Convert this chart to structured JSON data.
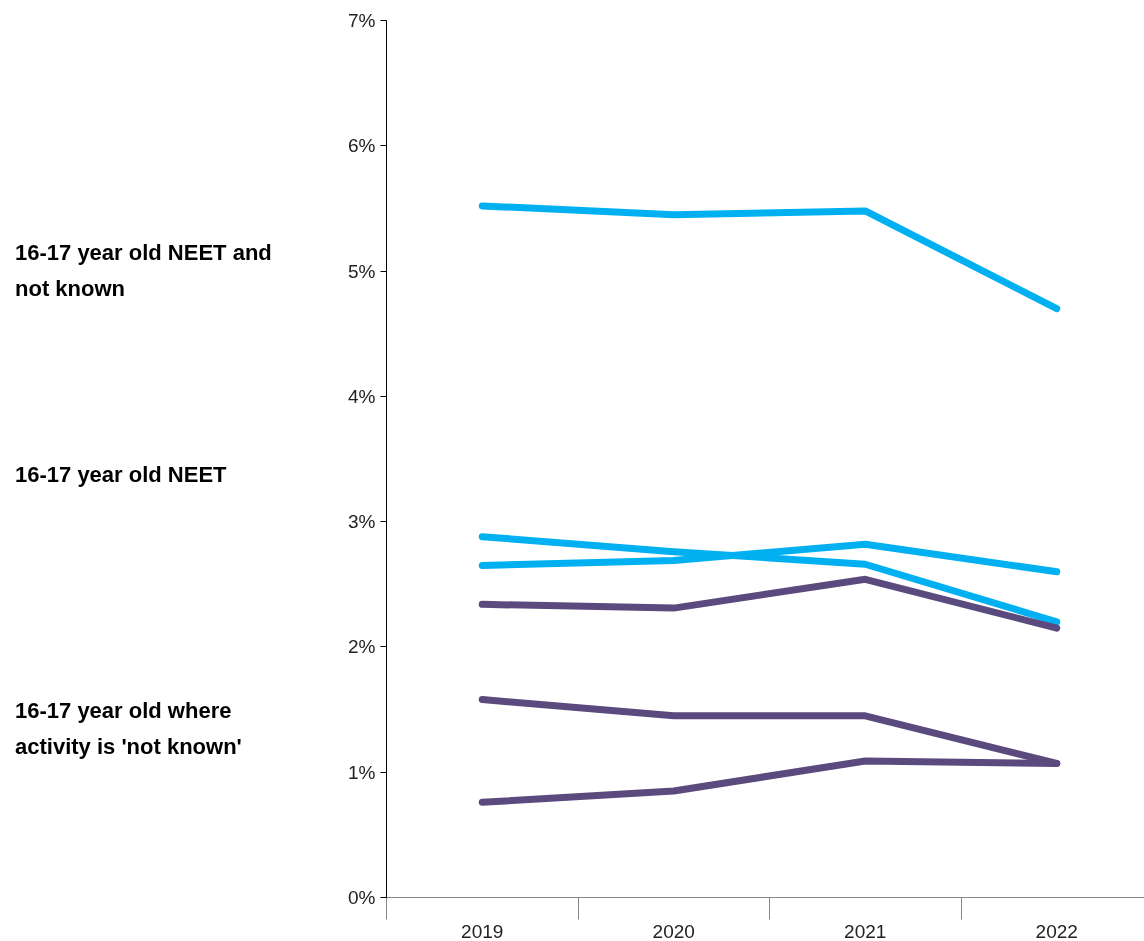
{
  "chart_data": {
    "type": "line",
    "categories": [
      "2019",
      "2020",
      "2021",
      "2022"
    ],
    "series": [
      {
        "color": "#00b0f0",
        "values": [
          5.52,
          5.45,
          5.48,
          4.7
        ]
      },
      {
        "color": "#00b0f0",
        "values": [
          2.88,
          2.76,
          2.66,
          2.2
        ]
      },
      {
        "color": "#00b0f0",
        "values": [
          2.65,
          2.69,
          2.82,
          2.6
        ]
      },
      {
        "color": "#5b4a7e",
        "values": [
          2.34,
          2.31,
          2.54,
          2.15
        ]
      },
      {
        "color": "#5b4a7e",
        "values": [
          1.58,
          1.45,
          1.45,
          1.07
        ]
      },
      {
        "color": "#5b4a7e",
        "values": [
          0.76,
          0.85,
          1.09,
          1.07
        ]
      }
    ],
    "ylim": [
      0,
      7
    ],
    "yticks": [
      {
        "value": 0,
        "label": "0%"
      },
      {
        "value": 1,
        "label": "1%"
      },
      {
        "value": 2,
        "label": "2%"
      },
      {
        "value": 3,
        "label": "3%"
      },
      {
        "value": 4,
        "label": "4%"
      },
      {
        "value": 5,
        "label": "5%"
      },
      {
        "value": 6,
        "label": "6%"
      },
      {
        "value": 7,
        "label": "7%"
      }
    ],
    "grid": false,
    "marker": "none",
    "line_style": "solid",
    "annotations": [
      "16-17 year old NEET and not known",
      "16-17 year old NEET",
      "16-17 year old where activity is 'not known'"
    ]
  }
}
